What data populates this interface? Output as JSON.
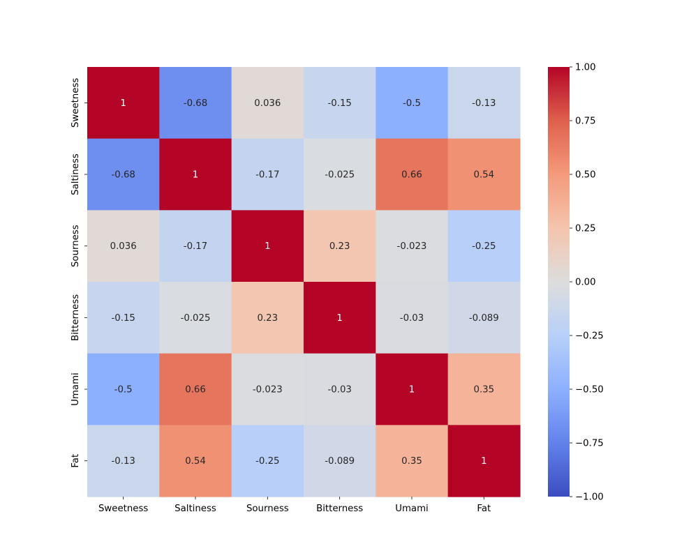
{
  "chart_data": {
    "type": "heatmap",
    "title": "",
    "xlabel": "",
    "ylabel": "",
    "x_categories": [
      "Sweetness",
      "Saltiness",
      "Sourness",
      "Bitterness",
      "Umami",
      "Fat"
    ],
    "y_categories": [
      "Sweetness",
      "Saltiness",
      "Sourness",
      "Bitterness",
      "Umami",
      "Fat"
    ],
    "values": [
      [
        1,
        -0.68,
        0.036,
        -0.15,
        -0.5,
        -0.13
      ],
      [
        -0.68,
        1,
        -0.17,
        -0.025,
        0.66,
        0.54
      ],
      [
        0.036,
        -0.17,
        1,
        0.23,
        -0.023,
        -0.25
      ],
      [
        -0.15,
        -0.025,
        0.23,
        1,
        -0.03,
        -0.089
      ],
      [
        -0.5,
        0.66,
        -0.023,
        -0.03,
        1,
        0.35
      ],
      [
        -0.13,
        0.54,
        -0.25,
        -0.089,
        0.35,
        1
      ]
    ],
    "annotations": [
      [
        "1",
        "-0.68",
        "0.036",
        "-0.15",
        "-0.5",
        "-0.13"
      ],
      [
        "-0.68",
        "1",
        "-0.17",
        "-0.025",
        "0.66",
        "0.54"
      ],
      [
        "0.036",
        "-0.17",
        "1",
        "0.23",
        "-0.023",
        "-0.25"
      ],
      [
        "-0.15",
        "-0.025",
        "0.23",
        "1",
        "-0.03",
        "-0.089"
      ],
      [
        "-0.5",
        "0.66",
        "-0.023",
        "-0.03",
        "1",
        "0.35"
      ],
      [
        "-0.13",
        "0.54",
        "-0.25",
        "-0.089",
        "0.35",
        "1"
      ]
    ],
    "colormap": "coolwarm",
    "vmin": -1.0,
    "vmax": 1.0,
    "colorbar_ticks": [
      1.0,
      0.75,
      0.5,
      0.25,
      0.0,
      -0.25,
      -0.5,
      -0.75,
      -1.0
    ],
    "colorbar_tick_labels": [
      "1.00",
      "0.75",
      "0.50",
      "0.25",
      "0.00",
      "−0.25",
      "−0.50",
      "−0.75",
      "−1.00"
    ],
    "grid": false,
    "legend": "colorbar-right"
  }
}
